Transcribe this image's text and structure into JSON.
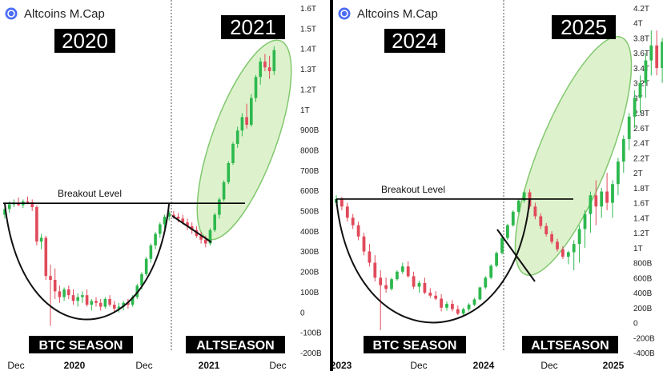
{
  "brand": {
    "logo_icon": "coin-logo-icon",
    "logo_color": "#4a6cf7"
  },
  "colors": {
    "up": "#2db84d",
    "down": "#e04a5a",
    "ellipse_fill": "#d8f0c4",
    "ellipse_stroke": "#6cbf55"
  },
  "chart_data": [
    {
      "type": "candlestick",
      "title": "Altcoins M.Cap",
      "period_labels": [
        "2020",
        "2021"
      ],
      "season_labels": [
        "BTC SEASON",
        "ALTSEASON"
      ],
      "annotation": "Breakout Level",
      "breakout_level": 580,
      "y_unit": "B",
      "y_ticks": [
        "1.6T",
        "1.5T",
        "1.4T",
        "1.3T",
        "1.2T",
        "1T",
        "900B",
        "800B",
        "700B",
        "600B",
        "500B",
        "400B",
        "300B",
        "200B",
        "100B",
        "0",
        "-100B",
        "-200B"
      ],
      "ylim": [
        -200,
        1600
      ],
      "x_ticks": [
        "Dec",
        "2020",
        "Dec",
        "2021",
        "Dec"
      ],
      "x_tick_bold": [
        false,
        true,
        false,
        true,
        false
      ],
      "ohlc": [
        [
          520,
          560,
          500,
          550
        ],
        [
          550,
          590,
          530,
          575
        ],
        [
          575,
          600,
          560,
          580
        ],
        [
          580,
          610,
          565,
          570
        ],
        [
          570,
          600,
          555,
          590
        ],
        [
          590,
          615,
          575,
          585
        ],
        [
          585,
          600,
          540,
          560
        ],
        [
          560,
          570,
          360,
          380
        ],
        [
          380,
          420,
          340,
          400
        ],
        [
          400,
          410,
          180,
          200
        ],
        [
          200,
          260,
          -60,
          180
        ],
        [
          180,
          240,
          80,
          120
        ],
        [
          120,
          150,
          60,
          90
        ],
        [
          90,
          140,
          70,
          130
        ],
        [
          130,
          150,
          80,
          100
        ],
        [
          100,
          130,
          50,
          70
        ],
        [
          70,
          110,
          40,
          90
        ],
        [
          90,
          120,
          60,
          100
        ],
        [
          100,
          130,
          40,
          50
        ],
        [
          50,
          80,
          20,
          70
        ],
        [
          70,
          90,
          40,
          60
        ],
        [
          60,
          80,
          20,
          40
        ],
        [
          40,
          90,
          30,
          80
        ],
        [
          80,
          100,
          40,
          50
        ],
        [
          50,
          70,
          10,
          30
        ],
        [
          30,
          60,
          10,
          40
        ],
        [
          40,
          70,
          20,
          60
        ],
        [
          60,
          80,
          30,
          50
        ],
        [
          50,
          100,
          40,
          90
        ],
        [
          90,
          160,
          80,
          150
        ],
        [
          150,
          220,
          130,
          210
        ],
        [
          210,
          300,
          200,
          290
        ],
        [
          290,
          370,
          270,
          360
        ],
        [
          360,
          430,
          340,
          420
        ],
        [
          420,
          480,
          400,
          470
        ],
        [
          470,
          520,
          450,
          510
        ],
        [
          510,
          540,
          490,
          530
        ],
        [
          520,
          540,
          500,
          510
        ],
        [
          510,
          530,
          480,
          500
        ],
        [
          500,
          520,
          470,
          480
        ],
        [
          480,
          500,
          440,
          460
        ],
        [
          460,
          480,
          420,
          440
        ],
        [
          440,
          460,
          400,
          410
        ],
        [
          410,
          430,
          370,
          390
        ],
        [
          390,
          410,
          350,
          370
        ],
        [
          370,
          450,
          360,
          440
        ],
        [
          440,
          530,
          430,
          520
        ],
        [
          520,
          610,
          500,
          600
        ],
        [
          600,
          700,
          590,
          690
        ],
        [
          690,
          800,
          680,
          790
        ],
        [
          790,
          900,
          780,
          890
        ],
        [
          890,
          980,
          870,
          960
        ],
        [
          960,
          1050,
          930,
          1030
        ],
        [
          1030,
          1100,
          970,
          990
        ],
        [
          990,
          1150,
          980,
          1130
        ],
        [
          1130,
          1250,
          1110,
          1240
        ],
        [
          1240,
          1340,
          1200,
          1320
        ],
        [
          1320,
          1360,
          1270,
          1290
        ],
        [
          1290,
          1350,
          1230,
          1270
        ],
        [
          1270,
          1400,
          1250,
          1380
        ]
      ]
    },
    {
      "type": "candlestick",
      "title": "Altcoins M.Cap",
      "period_labels": [
        "2024",
        "2025"
      ],
      "season_labels": [
        "BTC SEASON",
        "ALTSEASON"
      ],
      "annotation": "Breakout Level",
      "breakout_level": 1650,
      "y_unit": "B/T",
      "y_ticks": [
        "4.2T",
        "4T",
        "3.8T",
        "3.6T",
        "3.4T",
        "3.2T",
        "3T",
        "2.8T",
        "2.6T",
        "2.4T",
        "2.2T",
        "2T",
        "1.8T",
        "1.6T",
        "1.4T",
        "1.2T",
        "1T",
        "800B",
        "600B",
        "400B",
        "200B",
        "0",
        "-200B",
        "-400B"
      ],
      "ylim": [
        -400,
        4200
      ],
      "x_ticks": [
        "2023",
        "Dec",
        "2024",
        "Dec",
        "2025"
      ],
      "x_tick_bold": [
        true,
        false,
        true,
        false,
        true
      ],
      "ohlc": [
        [
          1600,
          1700,
          1550,
          1650
        ],
        [
          1650,
          1680,
          1500,
          1550
        ],
        [
          1550,
          1600,
          1350,
          1400
        ],
        [
          1400,
          1450,
          1250,
          1300
        ],
        [
          1300,
          1350,
          1100,
          1150
        ],
        [
          1150,
          1200,
          900,
          950
        ],
        [
          950,
          1050,
          750,
          800
        ],
        [
          800,
          900,
          550,
          600
        ],
        [
          600,
          700,
          -100,
          500
        ],
        [
          500,
          600,
          400,
          450
        ],
        [
          450,
          600,
          430,
          580
        ],
        [
          580,
          700,
          560,
          680
        ],
        [
          680,
          800,
          650,
          750
        ],
        [
          750,
          820,
          600,
          620
        ],
        [
          620,
          680,
          450,
          480
        ],
        [
          480,
          560,
          400,
          530
        ],
        [
          530,
          600,
          380,
          400
        ],
        [
          400,
          460,
          330,
          360
        ],
        [
          360,
          420,
          300,
          320
        ],
        [
          320,
          380,
          150,
          200
        ],
        [
          200,
          280,
          160,
          250
        ],
        [
          250,
          300,
          150,
          180
        ],
        [
          180,
          230,
          100,
          120
        ],
        [
          120,
          200,
          80,
          180
        ],
        [
          180,
          260,
          150,
          240
        ],
        [
          240,
          330,
          220,
          310
        ],
        [
          310,
          480,
          300,
          470
        ],
        [
          470,
          620,
          450,
          600
        ],
        [
          600,
          780,
          580,
          760
        ],
        [
          760,
          950,
          740,
          930
        ],
        [
          930,
          1150,
          910,
          1130
        ],
        [
          1130,
          1320,
          1100,
          1300
        ],
        [
          1300,
          1500,
          1280,
          1480
        ],
        [
          1480,
          1650,
          1460,
          1630
        ],
        [
          1630,
          1760,
          1600,
          1740
        ],
        [
          1740,
          1780,
          1520,
          1550
        ],
        [
          1550,
          1600,
          1380,
          1420
        ],
        [
          1420,
          1460,
          1250,
          1290
        ],
        [
          1290,
          1330,
          1150,
          1180
        ],
        [
          1180,
          1220,
          1050,
          1080
        ],
        [
          1080,
          1120,
          950,
          980
        ],
        [
          980,
          1020,
          850,
          880
        ],
        [
          880,
          960,
          780,
          940
        ],
        [
          940,
          1100,
          700,
          1050
        ],
        [
          1050,
          1300,
          800,
          1250
        ],
        [
          1250,
          1500,
          1000,
          1450
        ],
        [
          1450,
          1750,
          1200,
          1700
        ],
        [
          1700,
          1900,
          1300,
          1550
        ],
        [
          1550,
          1800,
          1400,
          1750
        ],
        [
          1750,
          2000,
          1500,
          1600
        ],
        [
          1600,
          1900,
          1400,
          1850
        ],
        [
          1850,
          2200,
          1700,
          2150
        ],
        [
          2150,
          2500,
          2000,
          2450
        ],
        [
          2450,
          2800,
          2300,
          2750
        ],
        [
          2750,
          3100,
          2600,
          3000
        ],
        [
          3000,
          3300,
          2800,
          3200
        ],
        [
          3200,
          3600,
          3000,
          3500
        ],
        [
          3500,
          3900,
          3300,
          3700
        ],
        [
          3700,
          3900,
          3300,
          3400
        ],
        [
          3400,
          3800,
          3200,
          3750
        ]
      ]
    }
  ]
}
